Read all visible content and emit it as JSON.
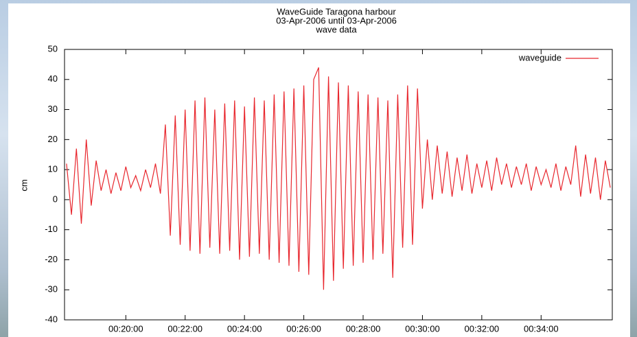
{
  "chart_data": {
    "type": "line",
    "title_lines": [
      "WaveGuide Taragona harbour",
      "03-Apr-2006  until  03-Apr-2006",
      "wave data"
    ],
    "ylabel": "cm",
    "legend": "top-right",
    "x": [
      1080,
      1090,
      1100,
      1110,
      1120,
      1130,
      1140,
      1150,
      1160,
      1170,
      1180,
      1190,
      1200,
      1210,
      1220,
      1230,
      1240,
      1250,
      1260,
      1270,
      1280,
      1290,
      1300,
      1310,
      1320,
      1330,
      1340,
      1350,
      1360,
      1370,
      1380,
      1390,
      1400,
      1410,
      1420,
      1430,
      1440,
      1450,
      1460,
      1470,
      1480,
      1490,
      1500,
      1510,
      1520,
      1530,
      1540,
      1550,
      1560,
      1570,
      1580,
      1590,
      1600,
      1610,
      1620,
      1630,
      1640,
      1650,
      1660,
      1670,
      1680,
      1690,
      1700,
      1710,
      1720,
      1730,
      1740,
      1750,
      1760,
      1770,
      1780,
      1790,
      1800,
      1810,
      1820,
      1830,
      1840,
      1850,
      1860,
      1870,
      1880,
      1890,
      1900,
      1910,
      1920,
      1930,
      1940,
      1950,
      1960,
      1970,
      1980,
      1990,
      2000,
      2010,
      2020,
      2030,
      2040,
      2050,
      2060,
      2070,
      2080,
      2090,
      2100,
      2110,
      2120,
      2130,
      2140,
      2150,
      2160,
      2170,
      2180
    ],
    "series": [
      {
        "name": "waveguide",
        "color": "#e8262d",
        "values": [
          12,
          -5,
          17,
          -8,
          20,
          -2,
          13,
          3,
          10,
          2,
          9,
          3,
          11,
          4,
          8,
          3,
          10,
          4,
          12,
          2,
          25,
          -12,
          28,
          -15,
          30,
          -17,
          33,
          -18,
          34,
          -16,
          30,
          -18,
          32,
          -17,
          33,
          -20,
          31,
          -19,
          34,
          -18,
          33,
          -20,
          35,
          -21,
          36,
          -22,
          37,
          -24,
          38,
          -25,
          40,
          44,
          -30,
          41,
          -27,
          39,
          -23,
          38,
          -22,
          36,
          -21,
          35,
          -20,
          34,
          -18,
          33,
          -26,
          35,
          -16,
          38,
          -15,
          37,
          -3,
          20,
          0,
          18,
          2,
          16,
          1,
          14,
          3,
          15,
          2,
          12,
          4,
          13,
          3,
          14,
          5,
          12,
          4,
          11,
          5,
          12,
          3,
          11,
          5,
          10,
          4,
          12,
          3,
          11,
          5,
          18,
          1,
          15,
          2,
          14,
          0,
          13,
          4
        ]
      }
    ],
    "xlim": [
      1076,
      2184
    ],
    "xticks": [
      {
        "value": 1200,
        "label": "00:20:00"
      },
      {
        "value": 1320,
        "label": "00:22:00"
      },
      {
        "value": 1440,
        "label": "00:24:00"
      },
      {
        "value": 1560,
        "label": "00:26:00"
      },
      {
        "value": 1680,
        "label": "00:28:00"
      },
      {
        "value": 1800,
        "label": "00:30:00"
      },
      {
        "value": 1920,
        "label": "00:32:00"
      },
      {
        "value": 2040,
        "label": "00:34:00"
      }
    ],
    "ylim": [
      -40,
      50
    ],
    "yticks": [
      -40,
      -30,
      -20,
      -10,
      0,
      10,
      20,
      30,
      40,
      50
    ]
  }
}
